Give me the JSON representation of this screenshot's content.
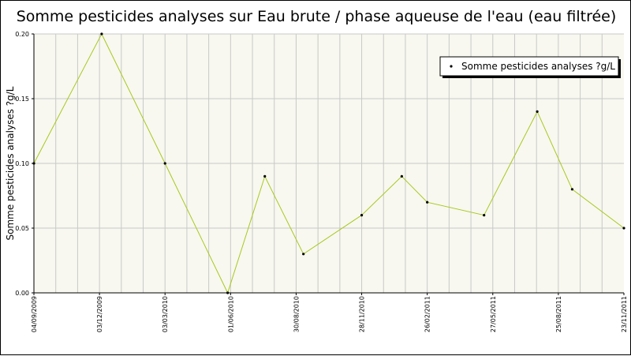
{
  "chart_data": {
    "type": "line",
    "title": "Somme pesticides analyses sur Eau brute / phase aqueuse de l'eau (eau filtrée)",
    "ylabel": "Somme pesticides analyses ?g/L",
    "xlabel": "",
    "ylim": [
      0,
      0.2
    ],
    "yticks": [
      "0.00",
      "0.05",
      "0.10",
      "0.15",
      "0.20"
    ],
    "xlim": [
      "2009-09-04",
      "2011-11-23"
    ],
    "xtick_labels": [
      "04/09/2009",
      "03/12/2009",
      "03/03/2010",
      "01/06/2010",
      "30/08/2010",
      "28/11/2010",
      "26/02/2011",
      "27/05/2011",
      "25/08/2011",
      "23/11/2011"
    ],
    "grid": true,
    "legend_position": "top-right",
    "series_color": "#a8c81e",
    "marker_color": "#000000",
    "plot_background": "#f8f8f0",
    "series": [
      {
        "name": "Somme pesticides analyses ?g/L",
        "x": [
          "2009-09-04",
          "2009-12-06",
          "2010-03-03",
          "2010-05-28",
          "2010-07-18",
          "2010-09-09",
          "2010-11-28",
          "2011-01-22",
          "2011-02-26",
          "2011-05-15",
          "2011-07-27",
          "2011-09-13",
          "2011-11-23"
        ],
        "values": [
          0.1,
          0.2,
          0.1,
          0.0,
          0.09,
          0.03,
          0.06,
          0.09,
          0.07,
          0.06,
          0.14,
          0.08,
          0.05
        ]
      }
    ]
  }
}
